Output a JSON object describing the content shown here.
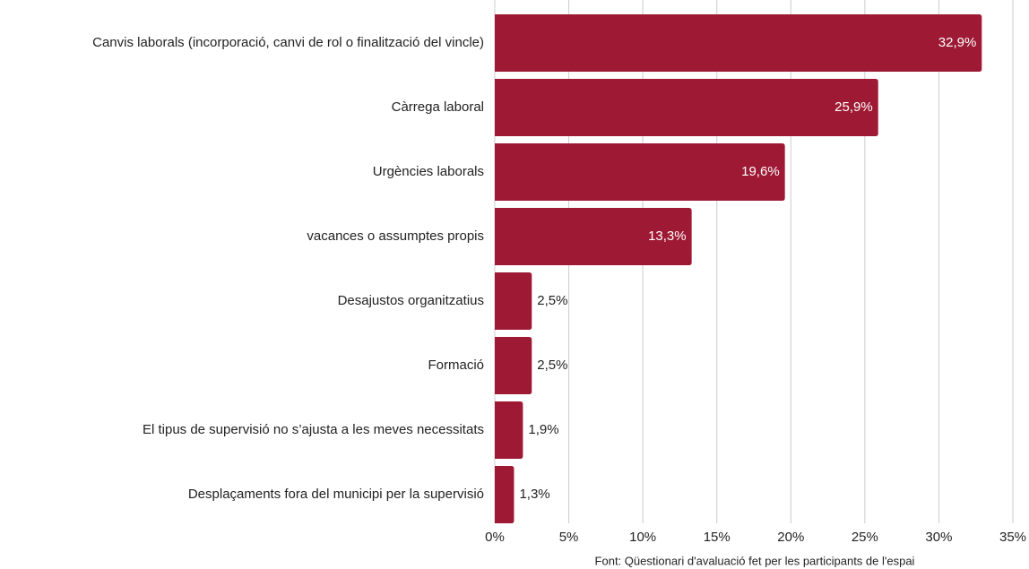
{
  "chart_data": {
    "type": "bar",
    "orientation": "horizontal",
    "categories": [
      "Canvis laborals (incorporació, canvi de rol o finalització del vincle)",
      "Càrrega laboral",
      "Urgències laborals",
      "vacances o assumptes propis",
      "Desajustos organitzatius",
      "Formació",
      "El tipus de supervisió no s’ajusta a les meves necessitats",
      "Desplaçaments fora del municipi per la supervisió"
    ],
    "values": [
      32.9,
      25.9,
      19.6,
      13.3,
      2.5,
      2.5,
      1.9,
      1.3
    ],
    "value_labels": [
      "32,9%",
      "25,9%",
      "19,6%",
      "13,3%",
      "2,5%",
      "2,5%",
      "1,9%",
      "1,3%"
    ],
    "color": "#9e1a34",
    "xlim": [
      0,
      35
    ],
    "xticks": [
      {
        "value": 0,
        "label": "0%"
      },
      {
        "value": 5,
        "label": "5%"
      },
      {
        "value": 10,
        "label": "10%"
      },
      {
        "value": 15,
        "label": "15%"
      },
      {
        "value": 20,
        "label": "20%"
      },
      {
        "value": 25,
        "label": "25%"
      },
      {
        "value": 30,
        "label": "30%"
      },
      {
        "value": 35,
        "label": "35%"
      }
    ],
    "grid": true,
    "source": "Font: Qüestionari d'avaluació fet per les participants de l'espai"
  }
}
